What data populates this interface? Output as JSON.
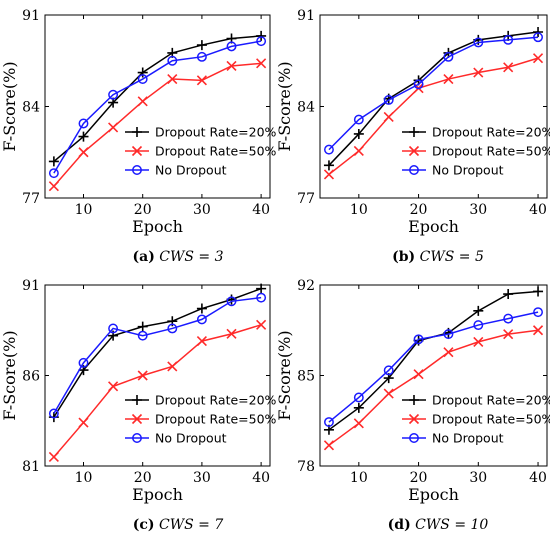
{
  "chart_data": [
    {
      "type": "line",
      "caption_tag": "(a)",
      "caption_text": "CWS = 3",
      "xlabel": "Epoch",
      "ylabel": "F-Score(%)",
      "xlim": [
        3.5,
        41.5
      ],
      "ylim": [
        77,
        91
      ],
      "xticks": [
        10,
        20,
        30,
        40
      ],
      "yticks": [
        77,
        84,
        91
      ],
      "legend_position": "lower-right",
      "x": [
        5,
        10,
        15,
        20,
        25,
        30,
        35,
        40
      ],
      "series": [
        {
          "name": "Dropout Rate=20%",
          "color": "#000000",
          "marker": "plus",
          "values": [
            79.8,
            81.7,
            84.3,
            86.6,
            88.1,
            88.7,
            89.2,
            89.4
          ]
        },
        {
          "name": "Dropout Rate=50%",
          "color": "#ff2a2a",
          "marker": "x",
          "values": [
            77.9,
            80.5,
            82.4,
            84.4,
            86.1,
            86.0,
            87.1,
            87.3
          ]
        },
        {
          "name": "No Dropout",
          "color": "#1a1aff",
          "marker": "circle",
          "values": [
            78.9,
            82.7,
            84.9,
            86.1,
            87.5,
            87.8,
            88.6,
            89.0
          ]
        }
      ]
    },
    {
      "type": "line",
      "caption_tag": "(b)",
      "caption_text": "CWS = 5",
      "xlabel": "Epoch",
      "ylabel": "F-Score(%)",
      "xlim": [
        3.5,
        41.5
      ],
      "ylim": [
        77,
        91
      ],
      "xticks": [
        10,
        20,
        30,
        40
      ],
      "yticks": [
        77,
        84,
        91
      ],
      "legend_position": "lower-right",
      "x": [
        5,
        10,
        15,
        20,
        25,
        30,
        35,
        40
      ],
      "series": [
        {
          "name": "Dropout Rate=20%",
          "color": "#000000",
          "marker": "plus",
          "values": [
            79.5,
            81.9,
            84.6,
            86.0,
            88.1,
            89.1,
            89.4,
            89.7
          ]
        },
        {
          "name": "Dropout Rate=50%",
          "color": "#ff2a2a",
          "marker": "x",
          "values": [
            78.8,
            80.6,
            83.2,
            85.4,
            86.1,
            86.6,
            87.0,
            87.7
          ]
        },
        {
          "name": "No Dropout",
          "color": "#1a1aff",
          "marker": "circle",
          "values": [
            80.7,
            83.0,
            84.5,
            85.7,
            87.8,
            88.9,
            89.1,
            89.3
          ]
        }
      ]
    },
    {
      "type": "line",
      "caption_tag": "(c)",
      "caption_text": "CWS = 7",
      "xlabel": "Epoch",
      "ylabel": "F-Score(%)",
      "xlim": [
        3.5,
        41.5
      ],
      "ylim": [
        81,
        91
      ],
      "xticks": [
        10,
        20,
        30,
        40
      ],
      "yticks": [
        81,
        86,
        91
      ],
      "legend_position": "lower-right",
      "x": [
        5,
        10,
        15,
        20,
        25,
        30,
        35,
        40
      ],
      "series": [
        {
          "name": "Dropout Rate=20%",
          "color": "#000000",
          "marker": "plus",
          "values": [
            83.7,
            86.3,
            88.2,
            88.7,
            89.0,
            89.7,
            90.2,
            90.8
          ]
        },
        {
          "name": "Dropout Rate=50%",
          "color": "#ff2a2a",
          "marker": "x",
          "values": [
            81.5,
            83.4,
            85.4,
            86.0,
            86.5,
            87.9,
            88.3,
            88.8
          ]
        },
        {
          "name": "No Dropout",
          "color": "#1a1aff",
          "marker": "circle",
          "values": [
            83.9,
            86.7,
            88.6,
            88.2,
            88.6,
            89.1,
            90.1,
            90.3
          ]
        }
      ]
    },
    {
      "type": "line",
      "caption_tag": "(d)",
      "caption_text": "CWS = 10",
      "xlabel": "Epoch",
      "ylabel": "F-Score(%)",
      "xlim": [
        3.5,
        41.5
      ],
      "ylim": [
        78,
        92
      ],
      "xticks": [
        10,
        20,
        30,
        40
      ],
      "yticks": [
        78,
        85,
        92
      ],
      "legend_position": "lower-right",
      "x": [
        5,
        10,
        15,
        20,
        25,
        30,
        35,
        40
      ],
      "series": [
        {
          "name": "Dropout Rate=20%",
          "color": "#000000",
          "marker": "plus",
          "values": [
            80.8,
            82.5,
            84.8,
            87.7,
            88.3,
            90.0,
            91.3,
            91.5
          ]
        },
        {
          "name": "Dropout Rate=50%",
          "color": "#ff2a2a",
          "marker": "x",
          "values": [
            79.6,
            81.3,
            83.6,
            85.1,
            86.8,
            87.6,
            88.2,
            88.5
          ]
        },
        {
          "name": "No Dropout",
          "color": "#1a1aff",
          "marker": "circle",
          "values": [
            81.4,
            83.3,
            85.4,
            87.8,
            88.2,
            88.9,
            89.4,
            89.9
          ]
        }
      ]
    }
  ]
}
